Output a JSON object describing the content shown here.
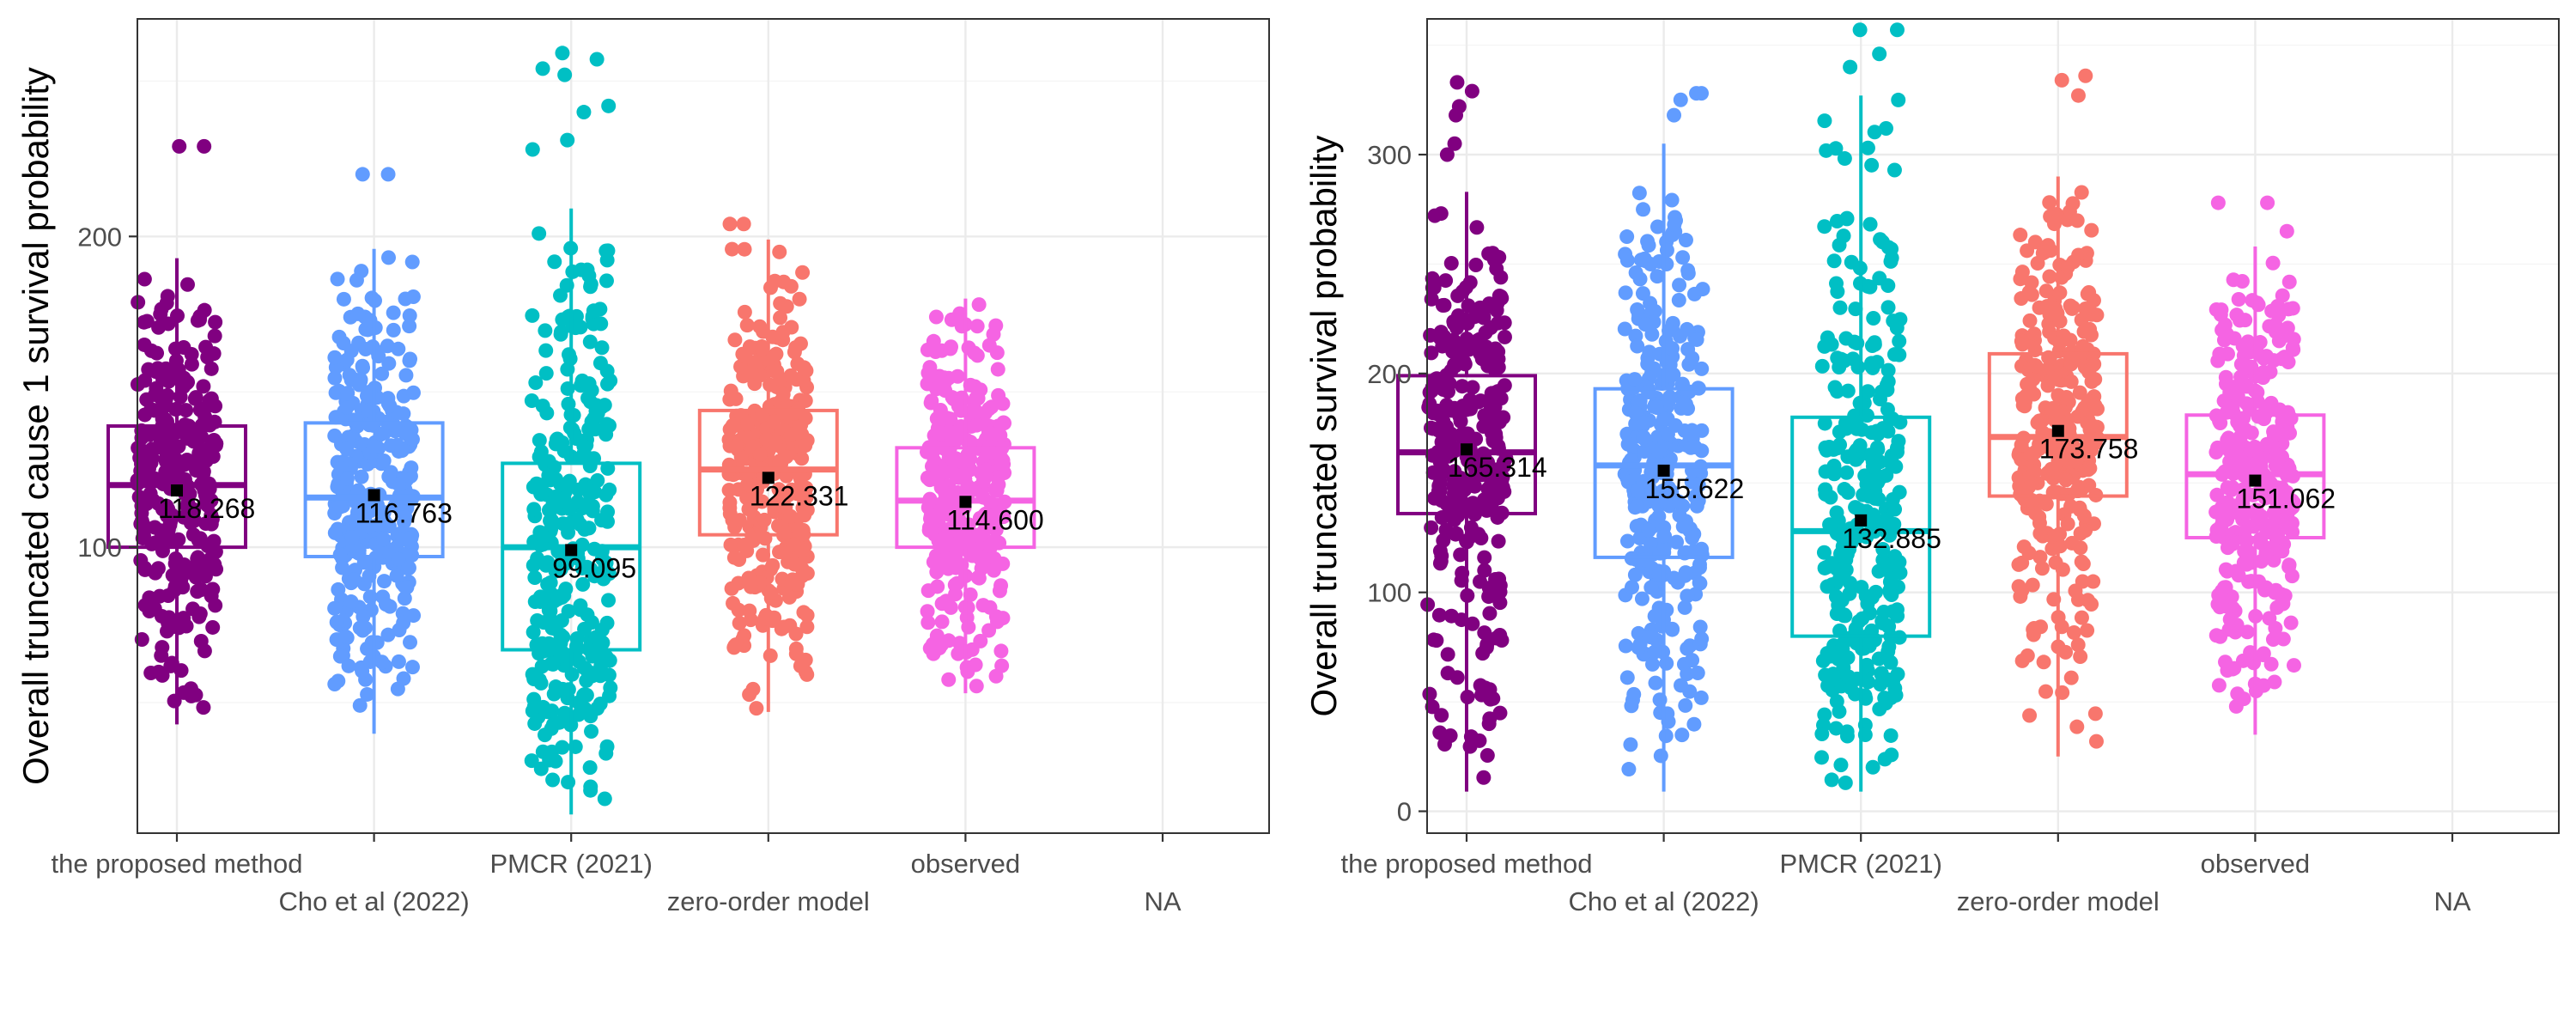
{
  "chart_data": [
    {
      "type": "box",
      "panel": "left",
      "title": "",
      "xlabel": "",
      "ylabel": "Overall truncated cause 1 survival probability",
      "categories": [
        "the proposed method",
        "Cho et al (2022)",
        "PMCR (2021)",
        "zero-order model",
        "observed",
        "NA"
      ],
      "category_label_rows": [
        0,
        1,
        0,
        1,
        0,
        1
      ],
      "colors": [
        "#800080",
        "#619CFF",
        "#00BFC4",
        "#F8766D",
        "#F564E3",
        "#999999"
      ],
      "ylim": [
        8,
        270
      ],
      "yticks": [
        100,
        200
      ],
      "grid": true,
      "legend": "none",
      "box_stats": [
        {
          "name": "the proposed method",
          "min": 43,
          "q1": 100,
          "median": 120,
          "q3": 139,
          "max": 193,
          "mean": 118.268,
          "mean_label": "118.268",
          "outliers": [
            229,
            229
          ]
        },
        {
          "name": "Cho et al (2022)",
          "min": 40,
          "q1": 97,
          "median": 116,
          "q3": 140,
          "max": 196,
          "mean": 116.763,
          "mean_label": "116.763",
          "outliers": [
            220,
            220
          ]
        },
        {
          "name": "PMCR (2021)",
          "min": 14,
          "q1": 67,
          "median": 100,
          "q3": 127,
          "max": 209,
          "mean": 99.095,
          "mean_label": "99.095",
          "outliers": [
            228,
            231,
            240,
            242,
            252,
            254,
            257,
            259
          ]
        },
        {
          "name": "zero-order model",
          "min": 47,
          "q1": 104,
          "median": 125,
          "q3": 144,
          "max": 199,
          "mean": 122.331,
          "mean_label": "122.331",
          "outliers": [
            204,
            204
          ]
        },
        {
          "name": "observed",
          "min": 53,
          "q1": 100,
          "median": 115,
          "q3": 132,
          "max": 180,
          "mean": 114.6,
          "mean_label": "114.600",
          "outliers": []
        },
        {
          "name": "NA",
          "empty": true
        }
      ]
    },
    {
      "type": "box",
      "panel": "right",
      "title": "",
      "xlabel": "",
      "ylabel": "Overall truncated survival probability",
      "categories": [
        "the proposed method",
        "Cho et al (2022)",
        "PMCR (2021)",
        "zero-order model",
        "observed",
        "NA"
      ],
      "category_label_rows": [
        0,
        1,
        0,
        1,
        0,
        1
      ],
      "colors": [
        "#800080",
        "#619CFF",
        "#00BFC4",
        "#F8766D",
        "#F564E3",
        "#999999"
      ],
      "ylim": [
        -10,
        362
      ],
      "yticks": [
        0,
        100,
        200,
        300
      ],
      "grid": true,
      "legend": "none",
      "box_stats": [
        {
          "name": "the proposed method",
          "min": 9,
          "q1": 136,
          "median": 164,
          "q3": 199,
          "max": 283,
          "mean": 165.314,
          "mean_label": "165.314",
          "outliers": [
            300,
            305,
            318,
            322,
            329,
            333
          ]
        },
        {
          "name": "Cho et al (2022)",
          "min": 9,
          "q1": 116,
          "median": 158,
          "q3": 193,
          "max": 305,
          "mean": 155.622,
          "mean_label": "155.622",
          "outliers": [
            318,
            325,
            328,
            328
          ]
        },
        {
          "name": "PMCR (2021)",
          "min": 9,
          "q1": 80,
          "median": 128,
          "q3": 180,
          "max": 327,
          "mean": 132.885,
          "mean_label": "132.885",
          "outliers": [
            340,
            346,
            357,
            357
          ]
        },
        {
          "name": "zero-order model",
          "min": 25,
          "q1": 144,
          "median": 171,
          "q3": 209,
          "max": 290,
          "mean": 173.758,
          "mean_label": "173.758",
          "outliers": [
            327,
            334,
            336
          ]
        },
        {
          "name": "observed",
          "min": 35,
          "q1": 125,
          "median": 154,
          "q3": 181,
          "max": 258,
          "mean": 151.062,
          "mean_label": "151.062",
          "outliers": [
            265,
            278,
            278
          ]
        },
        {
          "name": "NA",
          "empty": true
        }
      ]
    }
  ]
}
